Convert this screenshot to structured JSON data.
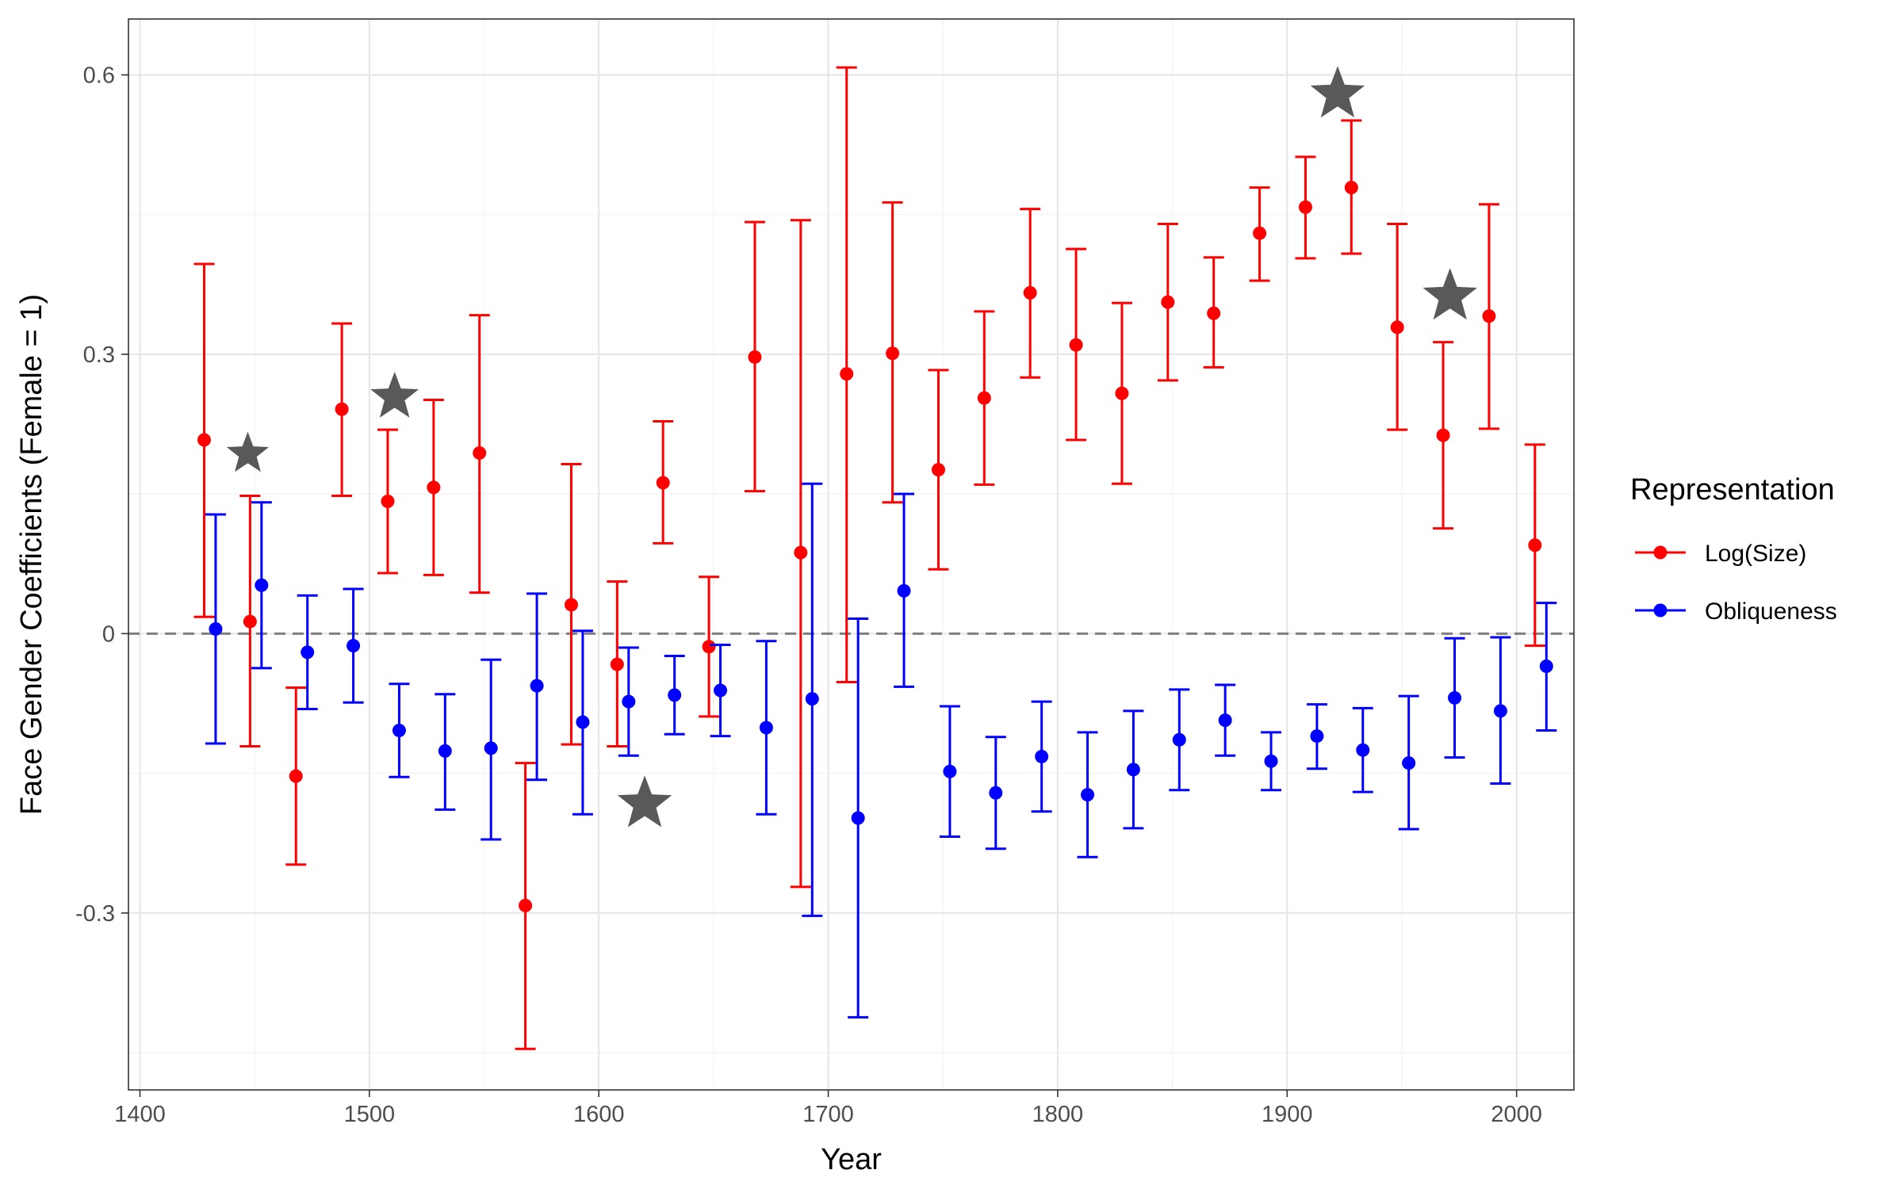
{
  "chart_data": {
    "type": "scatter",
    "title": "",
    "xlabel": "Year",
    "ylabel": "Face Gender Coefficients (Female = 1)",
    "xlim": [
      1395,
      2025
    ],
    "ylim": [
      -0.49,
      0.66
    ],
    "x_ticks": [
      1400,
      1500,
      1600,
      1700,
      1800,
      1900,
      2000
    ],
    "x_tick_labels": [
      "1400",
      "1500",
      "1600",
      "1700",
      "1800",
      "1900",
      "2000"
    ],
    "y_ticks": [
      -0.3,
      0,
      0.3,
      0.6
    ],
    "y_tick_labels": [
      "-0.3",
      "0",
      "0.3",
      "0.6"
    ],
    "grid": true,
    "reference_line": 0,
    "legend": {
      "title": "Representation",
      "position": "right",
      "entries": [
        "Log(Size)",
        "Obliqueness"
      ]
    },
    "series": [
      {
        "name": "Log(Size)",
        "color": "#ff0000",
        "points": [
          {
            "x": 1428,
            "y": 0.208,
            "lo": 0.018,
            "hi": 0.397
          },
          {
            "x": 1448,
            "y": 0.013,
            "lo": -0.121,
            "hi": 0.148
          },
          {
            "x": 1468,
            "y": -0.153,
            "lo": -0.248,
            "hi": -0.058
          },
          {
            "x": 1488,
            "y": 0.241,
            "lo": 0.148,
            "hi": 0.333
          },
          {
            "x": 1508,
            "y": 0.142,
            "lo": 0.065,
            "hi": 0.219
          },
          {
            "x": 1528,
            "y": 0.157,
            "lo": 0.063,
            "hi": 0.251
          },
          {
            "x": 1548,
            "y": 0.194,
            "lo": 0.044,
            "hi": 0.342
          },
          {
            "x": 1568,
            "y": -0.292,
            "lo": -0.446,
            "hi": -0.139
          },
          {
            "x": 1588,
            "y": 0.031,
            "lo": -0.119,
            "hi": 0.182
          },
          {
            "x": 1608,
            "y": -0.033,
            "lo": -0.121,
            "hi": 0.056
          },
          {
            "x": 1628,
            "y": 0.162,
            "lo": 0.097,
            "hi": 0.228
          },
          {
            "x": 1648,
            "y": -0.014,
            "lo": -0.089,
            "hi": 0.061
          },
          {
            "x": 1668,
            "y": 0.297,
            "lo": 0.153,
            "hi": 0.442
          },
          {
            "x": 1688,
            "y": 0.087,
            "lo": -0.272,
            "hi": 0.444
          },
          {
            "x": 1708,
            "y": 0.279,
            "lo": -0.052,
            "hi": 0.608
          },
          {
            "x": 1728,
            "y": 0.301,
            "lo": 0.141,
            "hi": 0.463
          },
          {
            "x": 1748,
            "y": 0.176,
            "lo": 0.069,
            "hi": 0.283
          },
          {
            "x": 1768,
            "y": 0.253,
            "lo": 0.16,
            "hi": 0.346
          },
          {
            "x": 1788,
            "y": 0.366,
            "lo": 0.275,
            "hi": 0.456
          },
          {
            "x": 1808,
            "y": 0.31,
            "lo": 0.208,
            "hi": 0.413
          },
          {
            "x": 1828,
            "y": 0.258,
            "lo": 0.161,
            "hi": 0.355
          },
          {
            "x": 1848,
            "y": 0.356,
            "lo": 0.272,
            "hi": 0.44
          },
          {
            "x": 1868,
            "y": 0.344,
            "lo": 0.286,
            "hi": 0.404
          },
          {
            "x": 1888,
            "y": 0.43,
            "lo": 0.379,
            "hi": 0.479
          },
          {
            "x": 1908,
            "y": 0.458,
            "lo": 0.403,
            "hi": 0.512
          },
          {
            "x": 1928,
            "y": 0.479,
            "lo": 0.408,
            "hi": 0.551
          },
          {
            "x": 1948,
            "y": 0.329,
            "lo": 0.219,
            "hi": 0.44
          },
          {
            "x": 1968,
            "y": 0.213,
            "lo": 0.113,
            "hi": 0.313
          },
          {
            "x": 1988,
            "y": 0.341,
            "lo": 0.22,
            "hi": 0.461
          },
          {
            "x": 2008,
            "y": 0.095,
            "lo": -0.013,
            "hi": 0.203
          }
        ]
      },
      {
        "name": "Obliqueness",
        "color": "#0000ff",
        "points": [
          {
            "x": 1433,
            "y": 0.005,
            "lo": -0.118,
            "hi": 0.128
          },
          {
            "x": 1453,
            "y": 0.052,
            "lo": -0.037,
            "hi": 0.141
          },
          {
            "x": 1473,
            "y": -0.02,
            "lo": -0.081,
            "hi": 0.041
          },
          {
            "x": 1493,
            "y": -0.013,
            "lo": -0.074,
            "hi": 0.048
          },
          {
            "x": 1513,
            "y": -0.104,
            "lo": -0.154,
            "hi": -0.054
          },
          {
            "x": 1533,
            "y": -0.126,
            "lo": -0.189,
            "hi": -0.065
          },
          {
            "x": 1553,
            "y": -0.123,
            "lo": -0.221,
            "hi": -0.028
          },
          {
            "x": 1573,
            "y": -0.056,
            "lo": -0.157,
            "hi": 0.043
          },
          {
            "x": 1593,
            "y": -0.095,
            "lo": -0.194,
            "hi": 0.003
          },
          {
            "x": 1613,
            "y": -0.073,
            "lo": -0.131,
            "hi": -0.015
          },
          {
            "x": 1633,
            "y": -0.066,
            "lo": -0.108,
            "hi": -0.024
          },
          {
            "x": 1653,
            "y": -0.061,
            "lo": -0.11,
            "hi": -0.012
          },
          {
            "x": 1673,
            "y": -0.101,
            "lo": -0.194,
            "hi": -0.008
          },
          {
            "x": 1693,
            "y": -0.07,
            "lo": -0.303,
            "hi": 0.161
          },
          {
            "x": 1713,
            "y": -0.198,
            "lo": -0.412,
            "hi": 0.016
          },
          {
            "x": 1733,
            "y": 0.046,
            "lo": -0.057,
            "hi": 0.15
          },
          {
            "x": 1753,
            "y": -0.148,
            "lo": -0.218,
            "hi": -0.078
          },
          {
            "x": 1773,
            "y": -0.171,
            "lo": -0.231,
            "hi": -0.111
          },
          {
            "x": 1793,
            "y": -0.132,
            "lo": -0.191,
            "hi": -0.073
          },
          {
            "x": 1813,
            "y": -0.173,
            "lo": -0.24,
            "hi": -0.106
          },
          {
            "x": 1833,
            "y": -0.146,
            "lo": -0.209,
            "hi": -0.083
          },
          {
            "x": 1853,
            "y": -0.114,
            "lo": -0.168,
            "hi": -0.06
          },
          {
            "x": 1873,
            "y": -0.093,
            "lo": -0.131,
            "hi": -0.055
          },
          {
            "x": 1893,
            "y": -0.137,
            "lo": -0.168,
            "hi": -0.106
          },
          {
            "x": 1913,
            "y": -0.11,
            "lo": -0.145,
            "hi": -0.076
          },
          {
            "x": 1933,
            "y": -0.125,
            "lo": -0.17,
            "hi": -0.08
          },
          {
            "x": 1953,
            "y": -0.139,
            "lo": -0.21,
            "hi": -0.067
          },
          {
            "x": 1973,
            "y": -0.069,
            "lo": -0.133,
            "hi": -0.005
          },
          {
            "x": 1993,
            "y": -0.083,
            "lo": -0.161,
            "hi": -0.004
          },
          {
            "x": 2013,
            "y": -0.035,
            "lo": -0.104,
            "hi": 0.033
          }
        ]
      }
    ],
    "stars": {
      "color": "#595959",
      "points": [
        {
          "x": 1447,
          "y": 0.193
        },
        {
          "x": 1511,
          "y": 0.254
        },
        {
          "x": 1620,
          "y": -0.183
        },
        {
          "x": 1922,
          "y": 0.579
        },
        {
          "x": 1971,
          "y": 0.362
        }
      ]
    }
  }
}
